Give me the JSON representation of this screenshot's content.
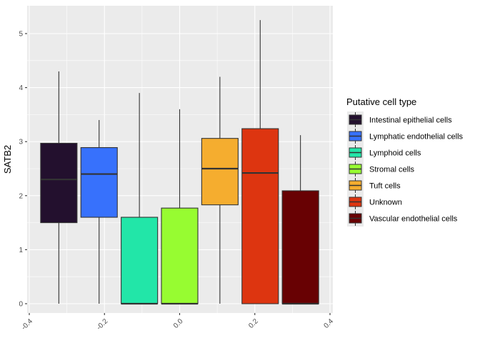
{
  "chart_data": {
    "type": "boxplot",
    "ylabel": "SATB2",
    "xlabel": "",
    "xlim": [
      -0.4,
      0.4
    ],
    "ylim": [
      -0.15,
      5.5
    ],
    "x_ticks": [
      -0.4,
      -0.2,
      0.0,
      0.2,
      0.4
    ],
    "x_tick_labels": [
      "-0.4",
      "-0.2",
      "0.0",
      "0.2",
      "0.4"
    ],
    "y_ticks": [
      0,
      1,
      2,
      3,
      4,
      5
    ],
    "y_tick_labels": [
      "0",
      "1",
      "2",
      "3",
      "4",
      "5"
    ],
    "grid": true,
    "legend": {
      "title": "Putative cell type",
      "placement": "right"
    },
    "series": [
      {
        "name": "Intestinal epithelial cells",
        "color": "#23102e",
        "x_center": -0.3214,
        "whisker_low": 0,
        "q1": 1.5,
        "median": 2.3,
        "q3": 2.97,
        "whisker_high": 4.3
      },
      {
        "name": "Lymphatic endothelial cells",
        "color": "#3771fc",
        "x_center": -0.2143,
        "whisker_low": 0,
        "q1": 1.6,
        "median": 2.4,
        "q3": 2.89,
        "whisker_high": 3.4
      },
      {
        "name": "Lymphoid cells",
        "color": "#22e6a8",
        "x_center": -0.1071,
        "whisker_low": 0,
        "q1": 0,
        "median": 0,
        "q3": 1.6,
        "whisker_high": 3.9
      },
      {
        "name": "Stromal cells",
        "color": "#97fc31",
        "x_center": 0.0,
        "whisker_low": 0,
        "q1": 0,
        "median": 0,
        "q3": 1.77,
        "whisker_high": 3.6
      },
      {
        "name": "Tuft cells",
        "color": "#f5ad2f",
        "x_center": 0.1071,
        "whisker_low": 0,
        "q1": 1.83,
        "median": 2.5,
        "q3": 3.06,
        "whisker_high": 4.2
      },
      {
        "name": "Unknown",
        "color": "#dd3510",
        "x_center": 0.2143,
        "whisker_low": 0,
        "q1": 0,
        "median": 2.42,
        "q3": 3.24,
        "whisker_high": 5.25
      },
      {
        "name": "Vascular endothelial cells",
        "color": "#680103",
        "x_center": 0.3214,
        "whisker_low": 0,
        "q1": 0,
        "median": 0,
        "q3": 2.09,
        "whisker_high": 3.12
      }
    ]
  }
}
